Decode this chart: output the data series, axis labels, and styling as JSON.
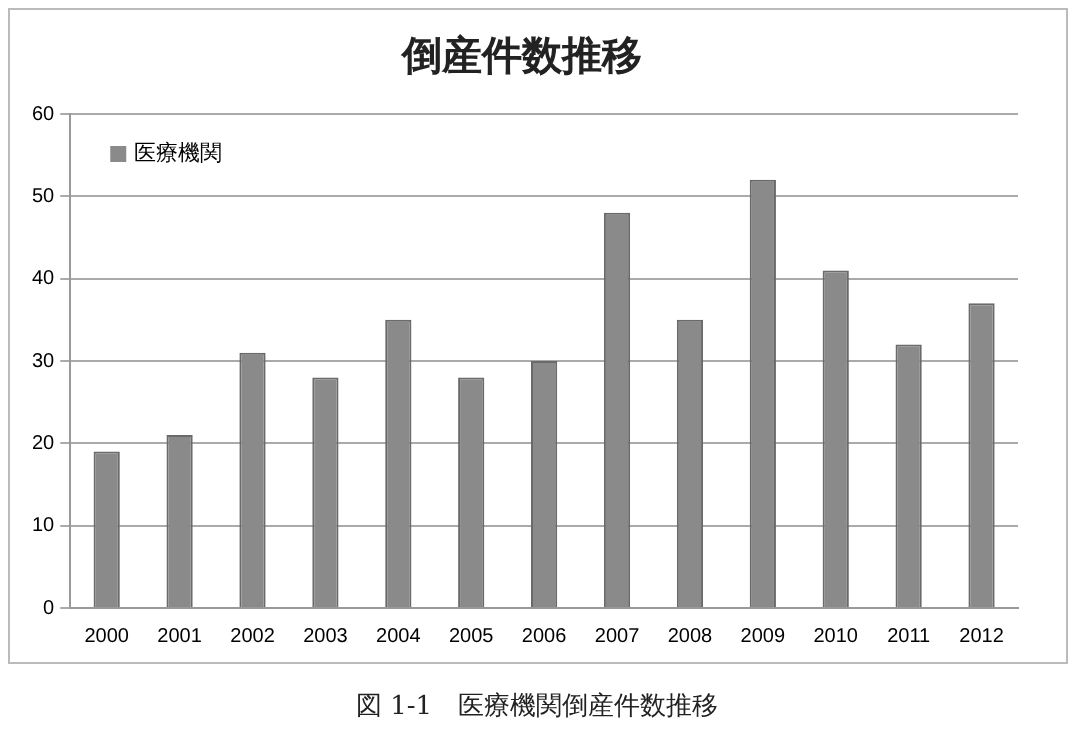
{
  "chart_data": {
    "type": "bar",
    "title": "倒産件数推移",
    "categories": [
      "2000",
      "2001",
      "2002",
      "2003",
      "2004",
      "2005",
      "2006",
      "2007",
      "2008",
      "2009",
      "2010",
      "2011",
      "2012"
    ],
    "series": [
      {
        "name": "医療機関",
        "color": "#8a8a8a",
        "values": [
          19,
          21,
          31,
          28,
          35,
          28,
          30,
          48,
          35,
          52,
          41,
          32,
          37
        ]
      }
    ],
    "ylim": [
      0,
      60
    ],
    "yticks": [
      0,
      10,
      20,
      30,
      40,
      50,
      60
    ],
    "grid": "y",
    "legend": "top left",
    "annotations": [
      "図 1-1　医療機関倒産件数推移"
    ]
  }
}
